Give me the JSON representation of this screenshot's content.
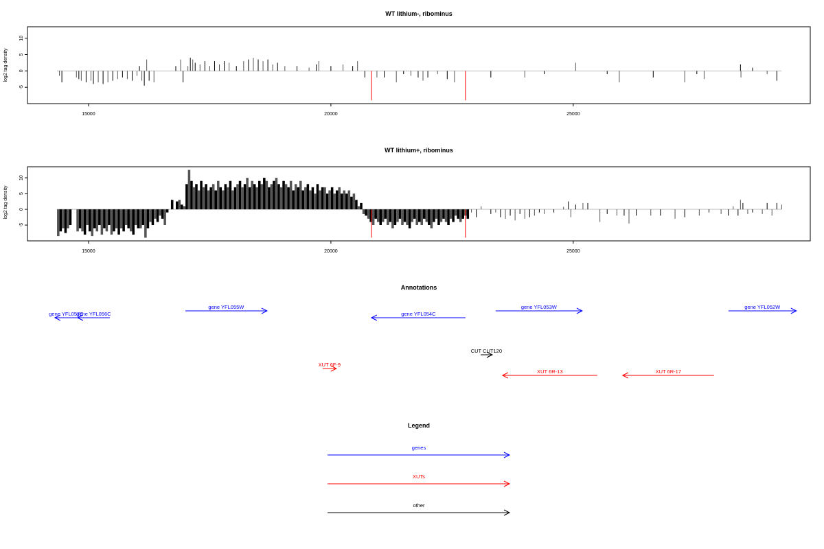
{
  "colors": {
    "gene": "#0000ff",
    "xut": "#ff0000",
    "other": "#000000",
    "bar": "#000000",
    "bar_alt": "#555555",
    "highlight": "#ff0000",
    "baseline": "#bbbbbb"
  },
  "chart_data": [
    {
      "type": "bar",
      "title": "WT lithium-, ribominus",
      "ylabel": "log2 tag density",
      "xlim": [
        13740,
        29890
      ],
      "ylim": [
        -10,
        13.5
      ],
      "xticks": [
        15000,
        20000,
        25000
      ],
      "yticks": [
        -5,
        0,
        5,
        10
      ],
      "baseline_range": [
        14350,
        29300
      ],
      "bars": [
        [
          14400,
          -1.5
        ],
        [
          14450,
          -3.5
        ],
        [
          14750,
          -2
        ],
        [
          14800,
          -2.5
        ],
        [
          14850,
          -3
        ],
        [
          14950,
          -3.5
        ],
        [
          15050,
          -3
        ],
        [
          15100,
          -4
        ],
        [
          15200,
          -3.5
        ],
        [
          15300,
          -4
        ],
        [
          15400,
          -3.5
        ],
        [
          15500,
          -3
        ],
        [
          15600,
          -2.5
        ],
        [
          15700,
          -2
        ],
        [
          15800,
          -2.5
        ],
        [
          15900,
          -3
        ],
        [
          16000,
          -1.5
        ],
        [
          16050,
          1.5
        ],
        [
          16100,
          -3
        ],
        [
          16150,
          -4.5
        ],
        [
          16200,
          3.5
        ],
        [
          16250,
          -3
        ],
        [
          16350,
          -3.5
        ],
        [
          16800,
          1.5
        ],
        [
          16900,
          3.5
        ],
        [
          16950,
          -3.5
        ],
        [
          17050,
          1.5
        ],
        [
          17100,
          4
        ],
        [
          17150,
          3.5
        ],
        [
          17200,
          2.5
        ],
        [
          17300,
          2
        ],
        [
          17400,
          3
        ],
        [
          17500,
          1.5
        ],
        [
          17600,
          3
        ],
        [
          17700,
          2
        ],
        [
          17800,
          3
        ],
        [
          17900,
          2.5
        ],
        [
          18050,
          1.5
        ],
        [
          18200,
          3
        ],
        [
          18300,
          3.5
        ],
        [
          18400,
          4
        ],
        [
          18500,
          3.5
        ],
        [
          18600,
          3
        ],
        [
          18700,
          3.5
        ],
        [
          18800,
          2
        ],
        [
          18900,
          2.5
        ],
        [
          19050,
          1.5
        ],
        [
          19300,
          1.5
        ],
        [
          19550,
          1
        ],
        [
          19700,
          2
        ],
        [
          19750,
          3
        ],
        [
          20000,
          1.5
        ],
        [
          20250,
          2
        ],
        [
          20450,
          1.5
        ],
        [
          20550,
          3
        ],
        [
          20700,
          -2
        ],
        [
          20950,
          -2
        ],
        [
          21100,
          -2
        ],
        [
          21350,
          -3.5
        ],
        [
          21500,
          -1
        ],
        [
          21650,
          -1.5
        ],
        [
          21800,
          -2
        ],
        [
          21900,
          -3
        ],
        [
          22000,
          -2
        ],
        [
          22200,
          -1
        ],
        [
          22400,
          -2.5
        ],
        [
          22550,
          -3.5
        ],
        [
          23300,
          -2
        ],
        [
          24000,
          -2
        ],
        [
          24400,
          -1
        ],
        [
          25050,
          2.5
        ],
        [
          25700,
          -1
        ],
        [
          25950,
          -3.5
        ],
        [
          26650,
          -2
        ],
        [
          27300,
          -3.5
        ],
        [
          27550,
          -1
        ],
        [
          27700,
          -2.5
        ],
        [
          28450,
          2
        ],
        [
          28460,
          -2
        ],
        [
          28700,
          1
        ],
        [
          29000,
          -1
        ],
        [
          29200,
          -3
        ]
      ],
      "highlight_bars": [
        [
          20836,
          -9
        ],
        [
          22776,
          -9
        ]
      ]
    },
    {
      "type": "bar",
      "title": "WT lithium+, ribominus",
      "ylabel": "log2 tag density",
      "xlim": [
        13740,
        29890
      ],
      "ylim": [
        -10,
        13.5
      ],
      "xticks": [
        15000,
        20000,
        25000
      ],
      "yticks": [
        -5,
        0,
        5,
        10
      ],
      "baseline_range": [
        14350,
        29300
      ],
      "dense": {
        "start": 14350,
        "step": 50,
        "values": [
          -8.5,
          -7,
          -6,
          -7.5,
          -6,
          -5,
          0,
          0,
          -7,
          -6,
          -7,
          -8,
          -5,
          -7,
          -8.5,
          -6,
          -7,
          -5,
          -8,
          -6,
          -7,
          -5,
          -8,
          -7,
          -6,
          -8,
          -6,
          -7,
          -5,
          -6,
          -7,
          -8,
          -5,
          -6,
          -6,
          -5,
          -9,
          -6,
          -4,
          -5,
          -3,
          -4,
          -2,
          -3,
          -5,
          -1,
          0,
          3,
          0,
          2.5,
          3,
          1.5,
          1,
          8,
          12.5,
          9,
          7,
          8,
          6,
          9,
          7,
          8,
          6,
          7,
          8,
          6,
          9,
          7,
          6,
          8,
          7,
          9,
          6,
          7,
          8,
          9,
          7,
          8,
          10,
          7,
          9,
          8,
          7,
          9,
          8,
          10,
          9,
          7,
          8,
          9,
          10,
          8,
          7,
          9,
          8,
          7,
          9,
          6,
          8,
          7,
          9,
          6,
          7,
          8,
          6,
          7,
          5,
          8,
          6,
          7,
          7,
          5,
          6,
          7,
          5,
          6,
          7,
          5,
          6,
          5,
          6,
          4,
          5,
          3,
          1,
          2,
          -1.5,
          -2,
          -3,
          -4,
          -5,
          -3,
          -4,
          -5,
          -4,
          -3,
          -5,
          -4,
          -6,
          -5,
          -4,
          -3,
          -5,
          -4,
          -5,
          -6,
          -4,
          -3,
          -5,
          -4,
          -5,
          -3,
          -4,
          -5,
          -6,
          -4,
          -3,
          -5,
          -4,
          -3,
          -4,
          -5,
          -3,
          -4,
          -2,
          -3,
          -4,
          -3,
          -2,
          -3
        ]
      },
      "bars": [
        [
          22900,
          -1
        ],
        [
          23000,
          -2.5
        ],
        [
          23100,
          1
        ],
        [
          23300,
          -1.5
        ],
        [
          23400,
          -1
        ],
        [
          23500,
          -2.5
        ],
        [
          23600,
          -3
        ],
        [
          23700,
          -2
        ],
        [
          23800,
          -3.5
        ],
        [
          23900,
          -1.5
        ],
        [
          24000,
          -3
        ],
        [
          24100,
          -2.5
        ],
        [
          24200,
          -2
        ],
        [
          24300,
          -1
        ],
        [
          24400,
          -1.5
        ],
        [
          24600,
          -1
        ],
        [
          24800,
          0.8
        ],
        [
          24900,
          2.5
        ],
        [
          24950,
          -2.5
        ],
        [
          25050,
          1.5
        ],
        [
          25200,
          2
        ],
        [
          25300,
          2
        ],
        [
          25550,
          -4
        ],
        [
          25700,
          -1.5
        ],
        [
          25900,
          -2
        ],
        [
          26050,
          -2
        ],
        [
          26150,
          -4.5
        ],
        [
          26300,
          -2
        ],
        [
          26600,
          -2
        ],
        [
          26800,
          -2
        ],
        [
          27100,
          -3
        ],
        [
          27300,
          -2.5
        ],
        [
          27600,
          -2
        ],
        [
          27800,
          -1
        ],
        [
          28050,
          -1.5
        ],
        [
          28200,
          -2
        ],
        [
          28300,
          1
        ],
        [
          28400,
          -2
        ],
        [
          28450,
          3
        ],
        [
          28500,
          2
        ],
        [
          28600,
          -1.5
        ],
        [
          28700,
          -1
        ],
        [
          28900,
          -1.5
        ],
        [
          29000,
          2
        ],
        [
          29100,
          -2
        ],
        [
          29200,
          2
        ],
        [
          29300,
          1.5
        ]
      ],
      "highlight_bars": [
        [
          20836,
          -9
        ],
        [
          22776,
          -9
        ]
      ]
    }
  ],
  "annotations": {
    "title": "Annotations",
    "features": [
      {
        "label": "gene YFL057C",
        "type": "gene",
        "start": 14306,
        "end": 14773,
        "strand": "-",
        "track": 2
      },
      {
        "label": "gene YFL056C",
        "type": "gene",
        "start": 14773,
        "end": 15439,
        "strand": "-",
        "track": 2
      },
      {
        "label": "gene YFL055W",
        "type": "gene",
        "start": 16997,
        "end": 18683,
        "strand": "+",
        "track": 1
      },
      {
        "label": "gene YFL054C",
        "type": "gene",
        "start": 20836,
        "end": 22776,
        "strand": "-",
        "track": 2
      },
      {
        "label": "gene YFL053W",
        "type": "gene",
        "start": 23400,
        "end": 25184,
        "strand": "+",
        "track": 1
      },
      {
        "label": "gene YFL052W",
        "type": "gene",
        "start": 28201,
        "end": 29603,
        "strand": "+",
        "track": 1
      },
      {
        "label": "CUT CUT120",
        "type": "other",
        "start": 23088,
        "end": 23329,
        "strand": "+",
        "track": 3
      },
      {
        "label": "XUT 6F-9",
        "type": "xut",
        "start": 19830,
        "end": 20113,
        "strand": "+",
        "track": 4
      },
      {
        "label": "XUT 6R-13",
        "type": "xut",
        "start": 23541,
        "end": 25496,
        "strand": "-",
        "track": 5
      },
      {
        "label": "XUT 6R-17",
        "type": "xut",
        "start": 26020,
        "end": 27904,
        "strand": "-",
        "track": 5
      }
    ]
  },
  "legend": {
    "title": "Legend",
    "items": [
      {
        "label": "genes",
        "type": "gene"
      },
      {
        "label": "XUTs",
        "type": "xut"
      },
      {
        "label": "other",
        "type": "other"
      }
    ]
  }
}
